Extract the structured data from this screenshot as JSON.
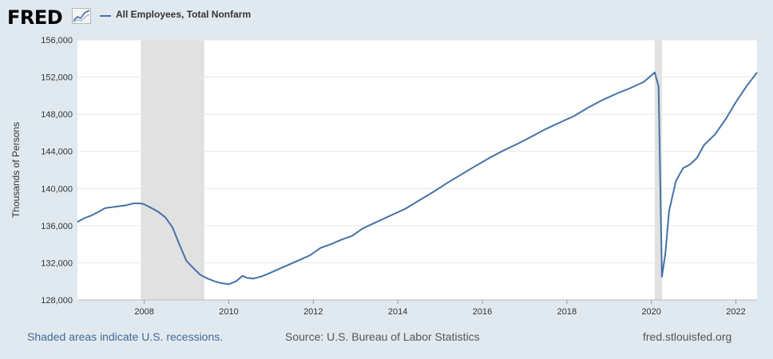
{
  "header": {
    "logo_text": "FRED",
    "legend_label": "All Employees, Total Nonfarm"
  },
  "colors": {
    "series": "#4572a7",
    "recession": "#e1e1e1",
    "background": "#e1e9f0",
    "grid": "#e6e6e6"
  },
  "footer": {
    "recession_note": "Shaded areas indicate U.S. recessions.",
    "source": "Source: U.S. Bureau of Labor Statistics",
    "site": "fred.stlouisfed.org"
  },
  "chart_data": {
    "type": "line",
    "title": "",
    "ylabel": "Thousands of Persons",
    "xlabel": "",
    "xlim": [
      2006.42,
      2022.5
    ],
    "ylim": [
      128000,
      156000
    ],
    "grid": true,
    "x_ticks": [
      {
        "value": 2008,
        "label": "2008"
      },
      {
        "value": 2010,
        "label": "2010"
      },
      {
        "value": 2012,
        "label": "2012"
      },
      {
        "value": 2014,
        "label": "2014"
      },
      {
        "value": 2016,
        "label": "2016"
      },
      {
        "value": 2018,
        "label": "2018"
      },
      {
        "value": 2020,
        "label": "2020"
      },
      {
        "value": 2022,
        "label": "2022"
      }
    ],
    "y_ticks": [
      {
        "value": 128000,
        "label": "128,000"
      },
      {
        "value": 132000,
        "label": "132,000"
      },
      {
        "value": 136000,
        "label": "136,000"
      },
      {
        "value": 140000,
        "label": "140,000"
      },
      {
        "value": 144000,
        "label": "144,000"
      },
      {
        "value": 148000,
        "label": "148,000"
      },
      {
        "value": 152000,
        "label": "152,000"
      },
      {
        "value": 156000,
        "label": "156,000"
      }
    ],
    "recessions": [
      [
        2007.92,
        2009.42
      ],
      [
        2020.08,
        2020.25
      ]
    ],
    "series": [
      {
        "name": "All Employees, Total Nonfarm",
        "x": [
          2006.42,
          2006.58,
          2006.75,
          2006.92,
          2007.08,
          2007.25,
          2007.42,
          2007.58,
          2007.75,
          2007.92,
          2008.0,
          2008.17,
          2008.33,
          2008.5,
          2008.67,
          2008.83,
          2009.0,
          2009.17,
          2009.33,
          2009.5,
          2009.67,
          2009.83,
          2010.0,
          2010.17,
          2010.33,
          2010.42,
          2010.58,
          2010.75,
          2010.92,
          2011.17,
          2011.42,
          2011.67,
          2011.92,
          2012.17,
          2012.42,
          2012.67,
          2012.92,
          2013.17,
          2013.5,
          2013.83,
          2014.17,
          2014.5,
          2014.83,
          2015.17,
          2015.5,
          2015.83,
          2016.17,
          2016.5,
          2016.83,
          2017.17,
          2017.5,
          2017.83,
          2018.17,
          2018.5,
          2018.83,
          2019.17,
          2019.5,
          2019.83,
          2020.08,
          2020.17,
          2020.25,
          2020.33,
          2020.42,
          2020.58,
          2020.75,
          2020.92,
          2021.08,
          2021.25,
          2021.5,
          2021.75,
          2022.0,
          2022.25,
          2022.5
        ],
        "y": [
          136400,
          136800,
          137100,
          137500,
          137900,
          138000,
          138100,
          138200,
          138400,
          138400,
          138300,
          137900,
          137500,
          136900,
          135800,
          134000,
          132200,
          131400,
          130700,
          130300,
          130000,
          129800,
          129700,
          130000,
          130600,
          130400,
          130300,
          130500,
          130800,
          131300,
          131800,
          132300,
          132800,
          133600,
          134000,
          134500,
          134900,
          135700,
          136400,
          137100,
          137800,
          138700,
          139600,
          140600,
          141500,
          142400,
          143300,
          144100,
          144800,
          145600,
          146400,
          147100,
          147800,
          148700,
          149500,
          150200,
          150800,
          151500,
          152500,
          151000,
          130500,
          133000,
          137600,
          140800,
          142200,
          142600,
          143300,
          144700,
          145800,
          147400,
          149300,
          151000,
          152500
        ]
      }
    ]
  }
}
